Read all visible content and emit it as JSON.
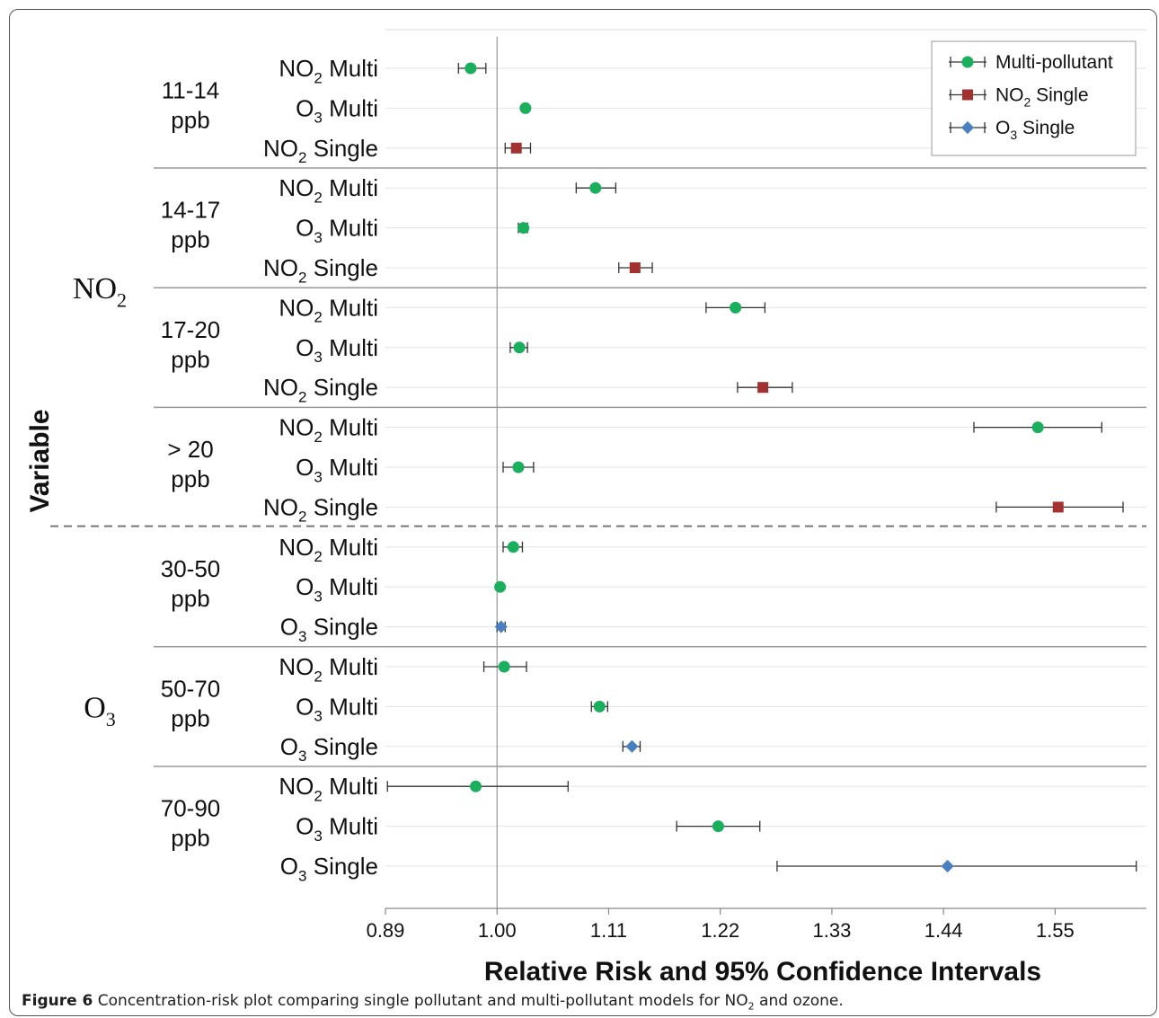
{
  "caption": {
    "bold": "Figure 6",
    "text_before_sub": "Concentration-risk plot comparing single pollutant and multi-pollutant models for NO",
    "sub": "2",
    "text_after_sub": " and ozone."
  },
  "chart_data": {
    "type": "forest",
    "xlabel": "Relative Risk and 95% Confidence Intervals",
    "ylabel": "Variable",
    "xlim": [
      0.89,
      1.64
    ],
    "reference_line": 1.0,
    "x_ticks": [
      "0.89",
      "1.00",
      "1.11",
      "1.22",
      "1.33",
      "1.44",
      "1.55"
    ],
    "grid": true,
    "legend": {
      "position": "top-right",
      "entries": [
        {
          "key": "multi",
          "label": "Multi-pollutant",
          "color": "#1aaf5d",
          "marker": "circle"
        },
        {
          "key": "no2single",
          "label": "NO",
          "sub": "2",
          "suffix": " Single",
          "color": "#a3312f",
          "marker": "square"
        },
        {
          "key": "o3single",
          "label": "O",
          "sub": "3",
          "suffix": " Single",
          "color": "#4a7fc0",
          "marker": "diamond"
        }
      ]
    },
    "groups": [
      {
        "pollutant": "NO",
        "pollutant_sub": "2",
        "bins": [
          {
            "label1": "11-14",
            "label2": "ppb",
            "rows": [
              {
                "label": "NO",
                "sub": "2",
                "suffix": " Multi",
                "series": "multi",
                "est": 0.974,
                "lo": 0.962,
                "hi": 0.989
              },
              {
                "label": "O",
                "sub": "3",
                "suffix": " Multi",
                "series": "multi",
                "est": 1.028,
                "lo": 1.026,
                "hi": 1.03
              },
              {
                "label": "NO",
                "sub": "2",
                "suffix": " Single",
                "series": "no2single",
                "est": 1.019,
                "lo": 1.008,
                "hi": 1.033
              }
            ]
          },
          {
            "label1": "14-17",
            "label2": "ppb",
            "rows": [
              {
                "label": "NO",
                "sub": "2",
                "suffix": " Multi",
                "series": "multi",
                "est": 1.097,
                "lo": 1.078,
                "hi": 1.117
              },
              {
                "label": "O",
                "sub": "3",
                "suffix": " Multi",
                "series": "multi",
                "est": 1.026,
                "lo": 1.021,
                "hi": 1.03
              },
              {
                "label": "NO",
                "sub": "2",
                "suffix": " Single",
                "series": "no2single",
                "est": 1.136,
                "lo": 1.12,
                "hi": 1.153
              }
            ]
          },
          {
            "label1": "17-20",
            "label2": "ppb",
            "rows": [
              {
                "label": "NO",
                "sub": "2",
                "suffix": " Multi",
                "series": "multi",
                "est": 1.235,
                "lo": 1.206,
                "hi": 1.264
              },
              {
                "label": "O",
                "sub": "3",
                "suffix": " Multi",
                "series": "multi",
                "est": 1.022,
                "lo": 1.013,
                "hi": 1.03
              },
              {
                "label": "NO",
                "sub": "2",
                "suffix": " Single",
                "series": "no2single",
                "est": 1.262,
                "lo": 1.237,
                "hi": 1.291
              }
            ]
          },
          {
            "label1": "> 20",
            "label2": "ppb",
            "rows": [
              {
                "label": "NO",
                "sub": "2",
                "suffix": " Multi",
                "series": "multi",
                "est": 1.533,
                "lo": 1.47,
                "hi": 1.596
              },
              {
                "label": "O",
                "sub": "3",
                "suffix": " Multi",
                "series": "multi",
                "est": 1.021,
                "lo": 1.006,
                "hi": 1.036
              },
              {
                "label": "NO",
                "sub": "2",
                "suffix": " Single",
                "series": "no2single",
                "est": 1.553,
                "lo": 1.492,
                "hi": 1.617
              }
            ]
          }
        ]
      },
      {
        "pollutant": "O",
        "pollutant_sub": "3",
        "bins": [
          {
            "label1": "30-50",
            "label2": "ppb",
            "rows": [
              {
                "label": "NO",
                "sub": "2",
                "suffix": " Multi",
                "series": "multi",
                "est": 1.016,
                "lo": 1.006,
                "hi": 1.025
              },
              {
                "label": "O",
                "sub": "3",
                "suffix": " Multi",
                "series": "multi",
                "est": 1.003,
                "lo": 1.001,
                "hi": 1.005
              },
              {
                "label": "O",
                "sub": "3",
                "suffix": " Single",
                "series": "o3single",
                "est": 1.004,
                "lo": 1.0,
                "hi": 1.008
              }
            ]
          },
          {
            "label1": "50-70",
            "label2": "ppb",
            "rows": [
              {
                "label": "NO",
                "sub": "2",
                "suffix": " Multi",
                "series": "multi",
                "est": 1.007,
                "lo": 0.987,
                "hi": 1.029
              },
              {
                "label": "O",
                "sub": "3",
                "suffix": " Multi",
                "series": "multi",
                "est": 1.101,
                "lo": 1.093,
                "hi": 1.109
              },
              {
                "label": "O",
                "sub": "3",
                "suffix": " Single",
                "series": "o3single",
                "est": 1.133,
                "lo": 1.124,
                "hi": 1.141
              }
            ]
          },
          {
            "label1": "70-90",
            "label2": "ppb",
            "rows": [
              {
                "label": "NO",
                "sub": "2",
                "suffix": " Multi",
                "series": "multi",
                "est": 0.979,
                "lo": 0.892,
                "hi": 1.07
              },
              {
                "label": "O",
                "sub": "3",
                "suffix": " Multi",
                "series": "multi",
                "est": 1.218,
                "lo": 1.177,
                "hi": 1.259
              },
              {
                "label": "O",
                "sub": "3",
                "suffix": " Single",
                "series": "o3single",
                "est": 1.444,
                "lo": 1.276,
                "hi": 1.63
              }
            ]
          }
        ]
      }
    ]
  }
}
